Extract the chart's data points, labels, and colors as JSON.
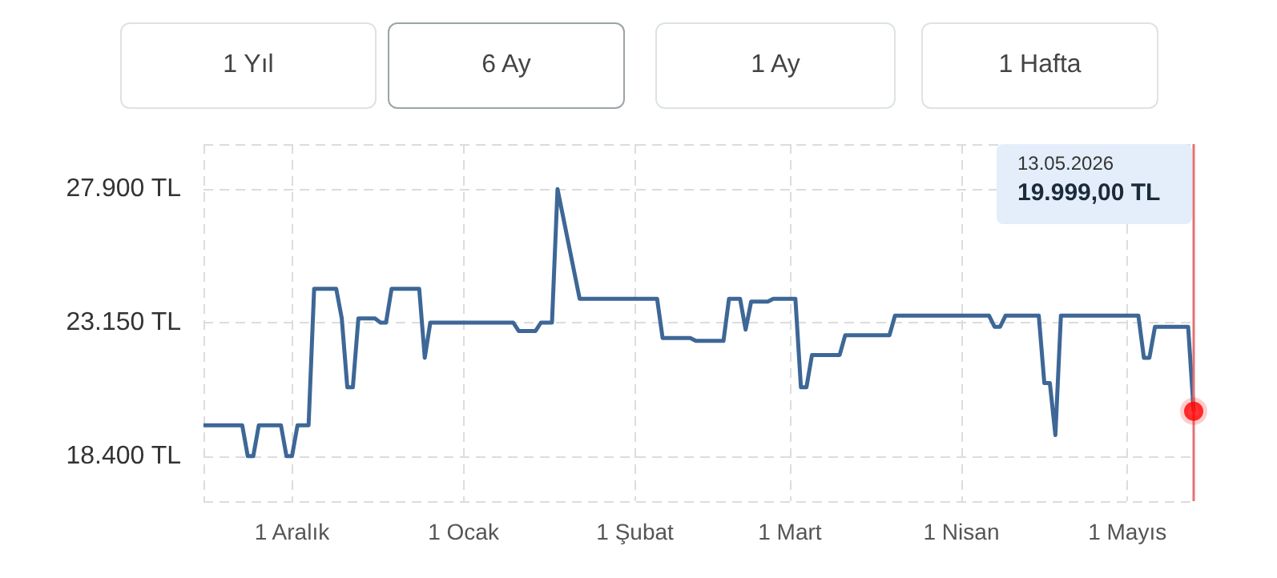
{
  "chart_data": {
    "type": "line",
    "annotations": [
      "1 Yıl",
      "6 Ay",
      "1 Ay",
      "1 Hafta",
      "13.05.2026",
      "19.999,00 TL"
    ],
    "xlim": [
      "2025-11-15",
      "2026-05-13"
    ],
    "xticks": [
      {
        "value": "2025-11-15",
        "label": null
      },
      {
        "value": "2025-12-01",
        "label": "1 Aralık"
      },
      {
        "value": "2026-01-01",
        "label": "1 Ocak"
      },
      {
        "value": "2026-02-01",
        "label": "1 Şubat"
      },
      {
        "value": "2026-03-01",
        "label": "1 Mart"
      },
      {
        "value": "2026-04-01",
        "label": "1 Nisan"
      },
      {
        "value": "2026-05-01",
        "label": "1 Mayıs"
      }
    ],
    "ylim": [
      16800,
      29500
    ],
    "yticks": [
      {
        "value": 16800,
        "label": null
      },
      {
        "value": 18400,
        "label": "18.400 TL"
      },
      {
        "value": 23150,
        "label": "23.150 TL"
      },
      {
        "value": 27900,
        "label": "27.900 TL"
      },
      {
        "value": 29500,
        "label": null
      }
    ],
    "grid": true,
    "ref_lines": [
      {
        "axis": "x",
        "value": "2026-05-13",
        "label": null,
        "color": "#e57373"
      }
    ],
    "series": [
      {
        "marker": "none",
        "color": "#3d6796",
        "x": [
          "2025-11-15",
          "2025-11-22",
          "2025-11-23",
          "2025-11-24",
          "2025-11-25",
          "2025-11-29",
          "2025-11-30",
          "2025-12-01",
          "2025-12-02",
          "2025-12-04",
          "2025-12-05",
          "2025-12-09",
          "2025-12-10",
          "2025-12-11",
          "2025-12-12",
          "2025-12-13",
          "2025-12-16",
          "2025-12-17",
          "2025-12-18",
          "2025-12-19",
          "2025-12-24",
          "2025-12-25",
          "2025-12-26",
          "2026-01-10",
          "2026-01-11",
          "2026-01-14",
          "2026-01-15",
          "2026-01-17",
          "2026-01-18",
          "2026-01-22",
          "2026-02-05",
          "2026-02-06",
          "2026-02-11",
          "2026-02-12",
          "2026-02-17",
          "2026-02-18",
          "2026-02-20",
          "2026-02-21",
          "2026-02-22",
          "2026-02-25",
          "2026-02-26",
          "2026-03-02",
          "2026-03-03",
          "2026-03-04",
          "2026-03-05",
          "2026-03-10",
          "2026-03-11",
          "2026-03-19",
          "2026-03-20",
          "2026-04-06",
          "2026-04-07",
          "2026-04-08",
          "2026-04-09",
          "2026-04-15",
          "2026-04-16",
          "2026-04-17",
          "2026-04-18",
          "2026-04-19",
          "2026-05-03",
          "2026-05-04",
          "2026-05-05",
          "2026-05-06",
          "2026-05-12",
          "2026-05-13"
        ],
        "values": [
          19500,
          19500,
          18400,
          18400,
          19500,
          19500,
          18400,
          18400,
          19500,
          19500,
          24350,
          24350,
          23300,
          20850,
          20850,
          23300,
          23300,
          23150,
          23150,
          24350,
          24350,
          21900,
          23150,
          23150,
          22850,
          22850,
          23150,
          23150,
          27900,
          24000,
          24000,
          22600,
          22600,
          22500,
          22500,
          24000,
          24000,
          22900,
          23900,
          23900,
          24000,
          24000,
          20850,
          20850,
          22000,
          22000,
          22700,
          22700,
          23400,
          23400,
          23000,
          23000,
          23400,
          23400,
          21000,
          21000,
          19150,
          23400,
          23400,
          21900,
          21900,
          23000,
          23000,
          19999
        ]
      },
      {
        "type": "scatter",
        "marker": "circle",
        "color": "#ff0000",
        "x": [
          "2026-05-13"
        ],
        "values": [
          19999
        ]
      }
    ]
  }
}
